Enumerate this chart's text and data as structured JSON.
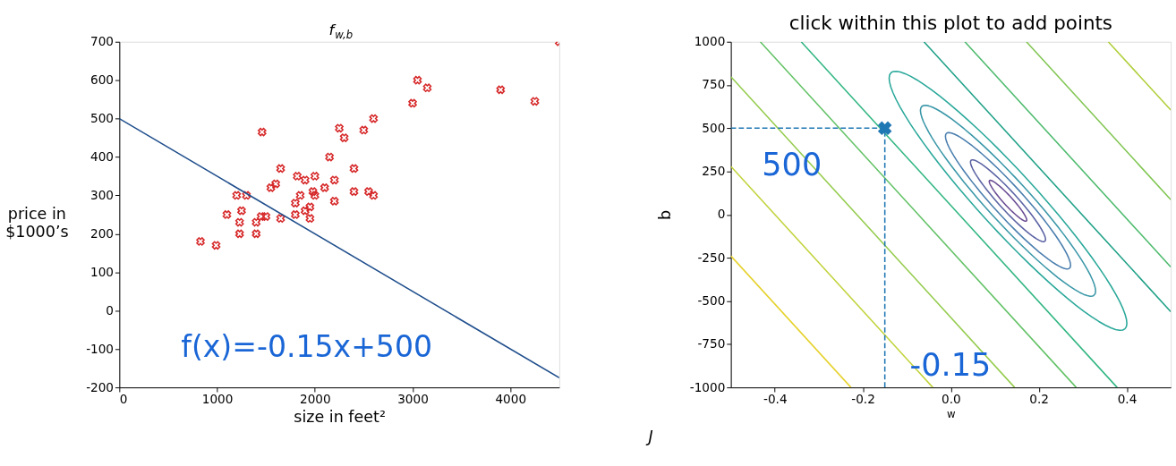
{
  "chart_data": [
    {
      "type": "scatter",
      "title": "f$_{w,b}$",
      "xlabel": "size in feet²",
      "ylabel": "price in $1000’s",
      "xlim": [
        0,
        4500
      ],
      "ylim": [
        -200,
        700
      ],
      "xticks": [
        0,
        1000,
        2000,
        3000,
        4000
      ],
      "yticks": [
        -200,
        -100,
        0,
        100,
        200,
        300,
        400,
        500,
        600,
        700
      ],
      "grid": false,
      "annotations": [
        "f(x)=-0.15x+500"
      ],
      "series": [
        {
          "type": "scatter",
          "color": "#d62728",
          "marker": "cross",
          "x": [
            830,
            990,
            1100,
            1200,
            1230,
            1230,
            1250,
            1300,
            1400,
            1400,
            1450,
            1460,
            1500,
            1550,
            1600,
            1650,
            1650,
            1800,
            1800,
            1820,
            1850,
            1900,
            1900,
            1950,
            1950,
            1980,
            2000,
            2000,
            2100,
            2150,
            2200,
            2200,
            2250,
            2300,
            2400,
            2400,
            2500,
            2550,
            2600,
            2600,
            3000,
            3050,
            3150,
            3900,
            4250,
            4500
          ],
          "values": [
            180,
            170,
            250,
            300,
            200,
            230,
            260,
            300,
            200,
            230,
            245,
            465,
            245,
            320,
            330,
            240,
            370,
            250,
            280,
            350,
            300,
            340,
            260,
            240,
            270,
            310,
            300,
            350,
            320,
            400,
            285,
            340,
            475,
            450,
            370,
            310,
            470,
            310,
            500,
            300,
            540,
            600,
            580,
            575,
            545,
            700
          ]
        },
        {
          "type": "line",
          "color": "#1f4e8c",
          "line_style": "solid",
          "x": [
            0,
            4500
          ],
          "values": [
            500,
            -175
          ]
        }
      ]
    },
    {
      "type": "line",
      "title": "click within this plot to add points",
      "xlabel": "w",
      "ylabel": "b",
      "xlim": [
        -0.5,
        0.5
      ],
      "ylim": [
        -1000,
        1000
      ],
      "xticks": [
        -0.4,
        -0.2,
        {
          "value": 0,
          "label": "0.0"
        },
        0.2,
        0.4
      ],
      "yticks": [
        -1000,
        -750,
        -500,
        -250,
        0,
        250,
        500,
        750,
        1000
      ],
      "grid": false,
      "annotations": [
        "500",
        "-0.15",
        "J"
      ],
      "series": [
        {
          "color": "#31b682",
          "x": [
            -0.34,
            0.378
          ],
          "values": [
            1000,
            -1000
          ]
        },
        {
          "color": "#63c266",
          "x": [
            -0.433,
            0.285
          ],
          "values": [
            1000,
            -1000
          ]
        },
        {
          "color": "#95cc4e",
          "x": [
            -0.5,
            0.145
          ],
          "values": [
            798,
            -1000
          ]
        },
        {
          "color": "#c2d33c",
          "x": [
            -0.5,
            -0.041
          ],
          "values": [
            279,
            -1000
          ]
        },
        {
          "color": "#e6d22e",
          "x": [
            -0.5,
            -0.227
          ],
          "values": [
            -239,
            -1000
          ]
        },
        {
          "color": "#1fa187",
          "x": [
            -0.061,
            0.5
          ],
          "values": [
            1000,
            -562
          ]
        },
        {
          "color": "#4cba6c",
          "x": [
            0.032,
            0.5
          ],
          "values": [
            1000,
            -303
          ]
        },
        {
          "color": "#80c652",
          "x": [
            0.172,
            0.5
          ],
          "values": [
            1000,
            86
          ]
        },
        {
          "color": "#b0cf3a",
          "x": [
            0.358,
            0.5
          ],
          "values": [
            1000,
            605
          ]
        },
        {
          "color": "#1f77b4",
          "line_style": "dashed",
          "x": [
            -0.5,
            -0.15
          ],
          "values": [
            500,
            500
          ]
        },
        {
          "color": "#1f77b4",
          "line_style": "dashed",
          "x": [
            -0.15,
            -0.15
          ],
          "values": [
            -1000,
            500
          ]
        },
        {
          "type": "scatter",
          "color": "#1f77b4",
          "marker": "cross",
          "x": [
            -0.15
          ],
          "values": [
            500
          ]
        }
      ]
    }
  ]
}
